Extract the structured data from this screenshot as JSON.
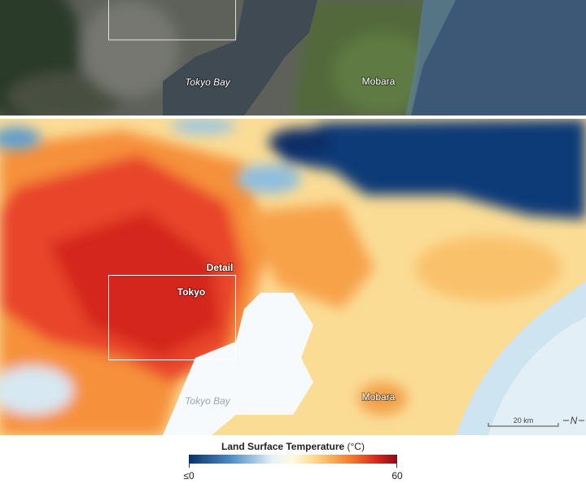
{
  "top_panel": {
    "labels": {
      "bay": "Tokyo Bay",
      "town": "Mobara"
    }
  },
  "bottom_panel": {
    "labels": {
      "detail": "Detail",
      "city": "Tokyo",
      "bay": "Tokyo Bay",
      "town": "Mobara"
    },
    "scale_bar": "20 km",
    "north": "N"
  },
  "legend": {
    "title": "Land Surface Temperature",
    "unit": "(°C)",
    "min_label": "≤0",
    "max_label": "60"
  }
}
